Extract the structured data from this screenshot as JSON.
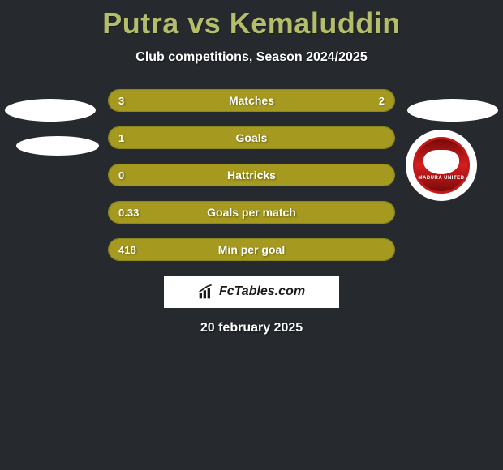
{
  "title": "Putra vs Kemaluddin",
  "subtitle": "Club competitions, Season 2024/2025",
  "date": "20 february 2025",
  "branding": {
    "text": "FcTables.com"
  },
  "colors": {
    "background": "#262a2e",
    "title_color": "#b4be69",
    "text_color": "#ffffff",
    "bar_fill": "#a59a1f",
    "bar_border": "#8a8a1f",
    "badge_red": "#c41818",
    "white": "#ffffff"
  },
  "team_badge": {
    "name": "MADURA UNITED"
  },
  "stats": [
    {
      "label": "Matches",
      "left_value": "3",
      "right_value": "2",
      "left_pct": 60,
      "right_pct": 40
    },
    {
      "label": "Goals",
      "left_value": "1",
      "right_value": "",
      "left_pct": 100,
      "right_pct": 0
    },
    {
      "label": "Hattricks",
      "left_value": "0",
      "right_value": "",
      "left_pct": 100,
      "right_pct": 0
    },
    {
      "label": "Goals per match",
      "left_value": "0.33",
      "right_value": "",
      "left_pct": 100,
      "right_pct": 0
    },
    {
      "label": "Min per goal",
      "left_value": "418",
      "right_value": "",
      "left_pct": 100,
      "right_pct": 0
    }
  ]
}
